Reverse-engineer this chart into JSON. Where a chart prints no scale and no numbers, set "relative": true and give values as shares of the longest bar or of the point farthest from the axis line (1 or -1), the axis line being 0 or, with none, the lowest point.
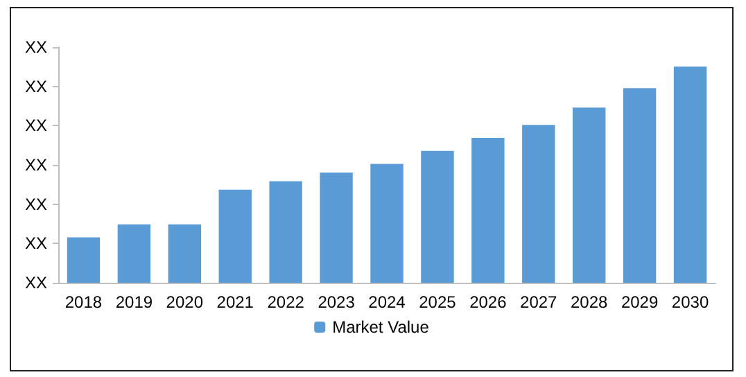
{
  "chart_data": {
    "type": "bar",
    "relative": true,
    "categories": [
      "2018",
      "2019",
      "2020",
      "2021",
      "2022",
      "2023",
      "2024",
      "2025",
      "2026",
      "2027",
      "2028",
      "2029",
      "2030"
    ],
    "series": [
      {
        "name": "Market Value",
        "color": "#5b9bd5",
        "values": [
          0.21,
          0.27,
          0.27,
          0.43,
          0.47,
          0.51,
          0.55,
          0.61,
          0.67,
          0.73,
          0.81,
          0.9,
          1
        ]
      }
    ],
    "annotations": [
      "XX",
      "XX",
      "XX",
      "XX",
      "XX",
      "XX",
      "XX"
    ],
    "legend": "bottom"
  }
}
